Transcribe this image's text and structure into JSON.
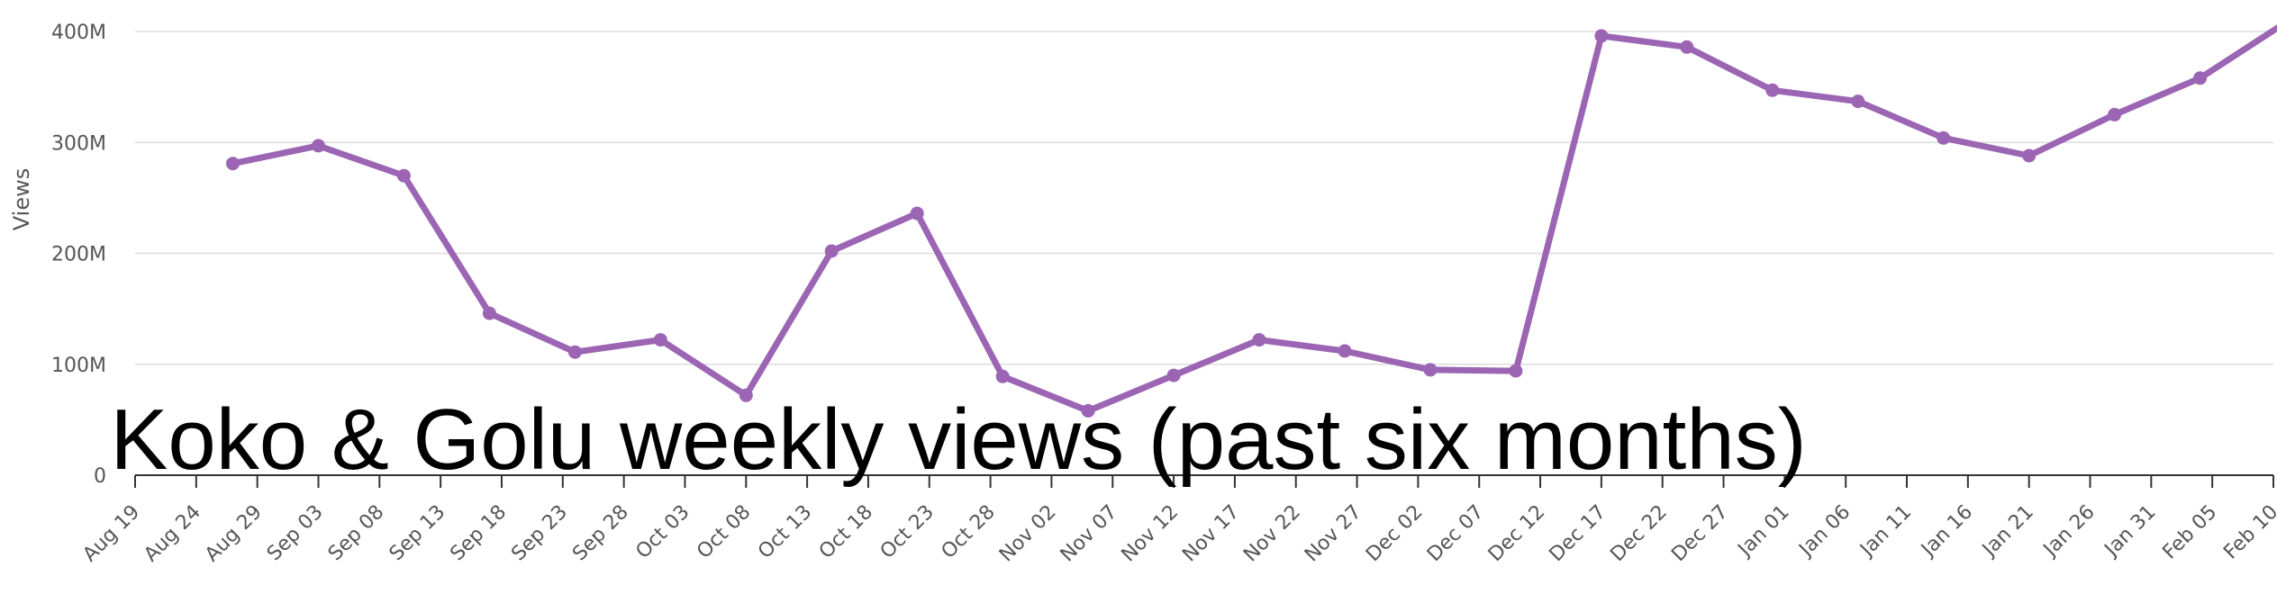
{
  "chart_data": {
    "type": "line",
    "title": "Koko & Golu weekly views (past six months)",
    "xlabel": "",
    "ylabel": "Views",
    "ylim": [
      0,
      400000000
    ],
    "yticks": [
      {
        "value": 0,
        "label": "0"
      },
      {
        "value": 100000000,
        "label": "100M"
      },
      {
        "value": 200000000,
        "label": "200M"
      },
      {
        "value": 300000000,
        "label": "300M"
      },
      {
        "value": 400000000,
        "label": "400M"
      }
    ],
    "x_tick_labels": [
      "Aug 19",
      "Aug 24",
      "Aug 29",
      "Sep 03",
      "Sep 08",
      "Sep 13",
      "Sep 18",
      "Sep 23",
      "Sep 28",
      "Oct 03",
      "Oct 08",
      "Oct 13",
      "Oct 18",
      "Oct 23",
      "Oct 28",
      "Nov 02",
      "Nov 07",
      "Nov 12",
      "Nov 17",
      "Nov 22",
      "Nov 27",
      "Dec 02",
      "Dec 07",
      "Dec 12",
      "Dec 17",
      "Dec 22",
      "Dec 27",
      "Jan 01",
      "Jan 06",
      "Jan 11",
      "Jan 16",
      "Jan 21",
      "Jan 26",
      "Jan 31",
      "Feb 05",
      "Feb 10"
    ],
    "x_start": "Aug 19",
    "x_end": "Feb 10",
    "grid": true,
    "color": "#9b65b4",
    "series": [
      {
        "points": [
          {
            "x": "Aug 27",
            "y": 281000000
          },
          {
            "x": "Sep 03",
            "y": 297000000
          },
          {
            "x": "Sep 10",
            "y": 270000000
          },
          {
            "x": "Sep 17",
            "y": 146000000
          },
          {
            "x": "Sep 24",
            "y": 111000000
          },
          {
            "x": "Oct 01",
            "y": 122000000
          },
          {
            "x": "Oct 08",
            "y": 72000000
          },
          {
            "x": "Oct 15",
            "y": 202000000
          },
          {
            "x": "Oct 22",
            "y": 236000000
          },
          {
            "x": "Oct 29",
            "y": 89000000
          },
          {
            "x": "Nov 05",
            "y": 58000000
          },
          {
            "x": "Nov 12",
            "y": 90000000
          },
          {
            "x": "Nov 19",
            "y": 122000000
          },
          {
            "x": "Nov 26",
            "y": 112000000
          },
          {
            "x": "Dec 03",
            "y": 95000000
          },
          {
            "x": "Dec 10",
            "y": 94000000
          },
          {
            "x": "Dec 17",
            "y": 396000000
          },
          {
            "x": "Dec 24",
            "y": 386000000
          },
          {
            "x": "Dec 31",
            "y": 347000000
          },
          {
            "x": "Jan 07",
            "y": 337000000
          },
          {
            "x": "Jan 14",
            "y": 304000000
          },
          {
            "x": "Jan 21",
            "y": 288000000
          },
          {
            "x": "Jan 28",
            "y": 325000000
          },
          {
            "x": "Feb 04",
            "y": 358000000
          },
          {
            "x": "Feb 11",
            "y": 408000000
          }
        ]
      }
    ]
  }
}
